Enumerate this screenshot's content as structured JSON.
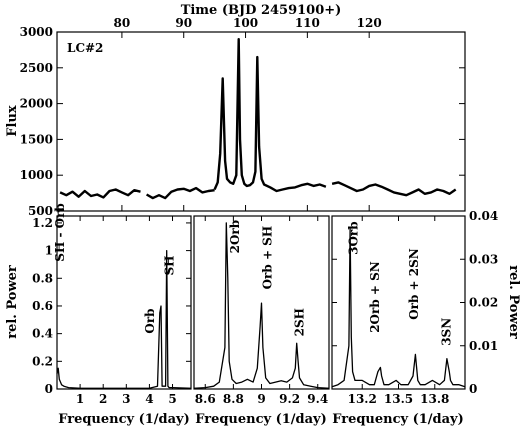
{
  "chart_data": [
    {
      "panel": "light-curve",
      "type": "line",
      "label": "LC#2",
      "xlabel": "Time (BJD 2459100+)",
      "ylabel": "Flux",
      "xlim": [
        69.5,
        135.5
      ],
      "ylim": [
        500,
        3000
      ],
      "xticks": [
        80,
        90,
        100,
        110,
        120
      ],
      "yticks": [
        500,
        1000,
        1500,
        2000,
        2500,
        3000
      ],
      "segments": [
        {
          "x": [
            70,
            71,
            72,
            73,
            74,
            75,
            76,
            77,
            78,
            79,
            80,
            81,
            82,
            83
          ],
          "y": [
            760,
            720,
            770,
            700,
            780,
            710,
            730,
            690,
            780,
            800,
            760,
            720,
            790,
            770
          ]
        },
        {
          "x": [
            84,
            85,
            86,
            87,
            88,
            89,
            90,
            91,
            92,
            93,
            94,
            95
          ],
          "y": [
            730,
            680,
            720,
            680,
            770,
            800,
            810,
            780,
            820,
            760,
            780,
            790
          ]
        },
        {
          "x": [
            95,
            95.5,
            95.9,
            96.3,
            96.7,
            97,
            97.5,
            98,
            98.5,
            98.9,
            99.1,
            99.4,
            99.8,
            100.2,
            100.7,
            101.2,
            101.6,
            101.9,
            102.2,
            102.6,
            103,
            104,
            105,
            106,
            107,
            108,
            109,
            110,
            111,
            112,
            113
          ],
          "y": [
            800,
            900,
            1300,
            2350,
            1200,
            950,
            900,
            880,
            1000,
            2900,
            1500,
            1000,
            880,
            850,
            860,
            900,
            1050,
            2650,
            1400,
            950,
            870,
            830,
            780,
            800,
            820,
            830,
            860,
            880,
            850,
            870,
            840
          ]
        },
        {
          "x": [
            114,
            115,
            116,
            117,
            118,
            119,
            120,
            121,
            122,
            123,
            124,
            125,
            126,
            127,
            128,
            129,
            130,
            131,
            132,
            133,
            134
          ],
          "y": [
            880,
            900,
            860,
            820,
            780,
            800,
            850,
            870,
            840,
            800,
            760,
            740,
            720,
            760,
            800,
            740,
            760,
            800,
            780,
            740,
            800
          ]
        }
      ]
    },
    {
      "panel": "periodogram-1",
      "type": "line",
      "xlabel": "",
      "ylabel": "rel. Power",
      "xlim": [
        0,
        5.8
      ],
      "ylim": [
        0,
        1.25
      ],
      "xticks": [
        1,
        2,
        3,
        4,
        5
      ],
      "yticks": [
        0,
        0.2,
        0.4,
        0.6,
        0.8,
        1,
        1.2
      ],
      "x": [
        0,
        0.05,
        0.1,
        0.15,
        0.2,
        0.3,
        0.5,
        1,
        2,
        3,
        4,
        4.35,
        4.45,
        4.5,
        4.55,
        4.65,
        4.7,
        4.75,
        4.8,
        4.85,
        5,
        5.8
      ],
      "y": [
        0.11,
        0.15,
        0.07,
        0.05,
        0.03,
        0.02,
        0.01,
        0.005,
        0.005,
        0.005,
        0.005,
        0.02,
        0.55,
        0.6,
        0.02,
        0.02,
        0.02,
        1.0,
        0.02,
        0.01,
        0.01,
        0.005
      ],
      "annotations": [
        {
          "text": "SH - Orb",
          "x": 0.3,
          "y": 0.92
        },
        {
          "text": "Orb",
          "x": 4.2,
          "y": 0.4
        },
        {
          "text": "SH",
          "x": 5.05,
          "y": 0.82
        }
      ]
    },
    {
      "panel": "periodogram-2",
      "type": "line",
      "xlabel": "",
      "ylabel": "",
      "xlim": [
        8.52,
        9.48
      ],
      "ylim": [
        0,
        1.25
      ],
      "xticks": [
        8.6,
        8.8,
        9,
        9.2,
        9.4
      ],
      "x": [
        8.52,
        8.6,
        8.66,
        8.7,
        8.74,
        8.75,
        8.76,
        8.77,
        8.79,
        8.82,
        8.86,
        8.9,
        8.94,
        8.97,
        8.99,
        9,
        9.01,
        9.03,
        9.06,
        9.1,
        9.14,
        9.18,
        9.22,
        9.24,
        9.25,
        9.26,
        9.27,
        9.3,
        9.35,
        9.4,
        9.48
      ],
      "y": [
        0.005,
        0.01,
        0.02,
        0.05,
        0.3,
        1.2,
        0.8,
        0.2,
        0.07,
        0.04,
        0.05,
        0.07,
        0.05,
        0.15,
        0.45,
        0.62,
        0.3,
        0.08,
        0.04,
        0.05,
        0.06,
        0.05,
        0.08,
        0.15,
        0.33,
        0.2,
        0.08,
        0.03,
        0.02,
        0.01,
        0.005
      ],
      "annotations": [
        {
          "text": "2Orb",
          "x": 8.84,
          "y": 0.98
        },
        {
          "text": "Orb + SH",
          "x": 9.07,
          "y": 0.72
        },
        {
          "text": "2SH",
          "x": 9.3,
          "y": 0.38
        }
      ]
    },
    {
      "panel": "periodogram-3",
      "type": "line",
      "xlabel": "",
      "ylabel": "rel. Power",
      "xlim": [
        12.95,
        14.05
      ],
      "ylim": [
        0,
        0.04
      ],
      "xticks": [
        13.2,
        13.5,
        13.8
      ],
      "yticks": [
        0,
        0.01,
        0.02,
        0.03,
        0.04
      ],
      "x": [
        12.95,
        13,
        13.05,
        13.09,
        13.1,
        13.11,
        13.12,
        13.14,
        13.2,
        13.26,
        13.3,
        13.33,
        13.35,
        13.36,
        13.38,
        13.42,
        13.48,
        13.52,
        13.58,
        13.62,
        13.64,
        13.65,
        13.66,
        13.68,
        13.72,
        13.78,
        13.84,
        13.88,
        13.9,
        13.92,
        13.93,
        13.95,
        14,
        14.05
      ],
      "y": [
        0.0005,
        0.001,
        0.002,
        0.01,
        0.037,
        0.012,
        0.004,
        0.002,
        0.002,
        0.001,
        0.001,
        0.004,
        0.005,
        0.003,
        0.001,
        0.001,
        0.002,
        0.001,
        0.001,
        0.003,
        0.008,
        0.005,
        0.002,
        0.001,
        0.001,
        0.002,
        0.001,
        0.002,
        0.007,
        0.004,
        0.002,
        0.001,
        0.001,
        0.0005
      ],
      "annotations": [
        {
          "text": "3Orb",
          "x": 13.16,
          "y": 0.031
        },
        {
          "text": "2Orb + SN",
          "x": 13.34,
          "y": 0.013
        },
        {
          "text": "Orb + 2SN",
          "x": 13.66,
          "y": 0.016
        },
        {
          "text": "3SN",
          "x": 13.93,
          "y": 0.01
        }
      ]
    }
  ],
  "shared": {
    "bottom_xlabel": "Frequency (1/day)"
  }
}
